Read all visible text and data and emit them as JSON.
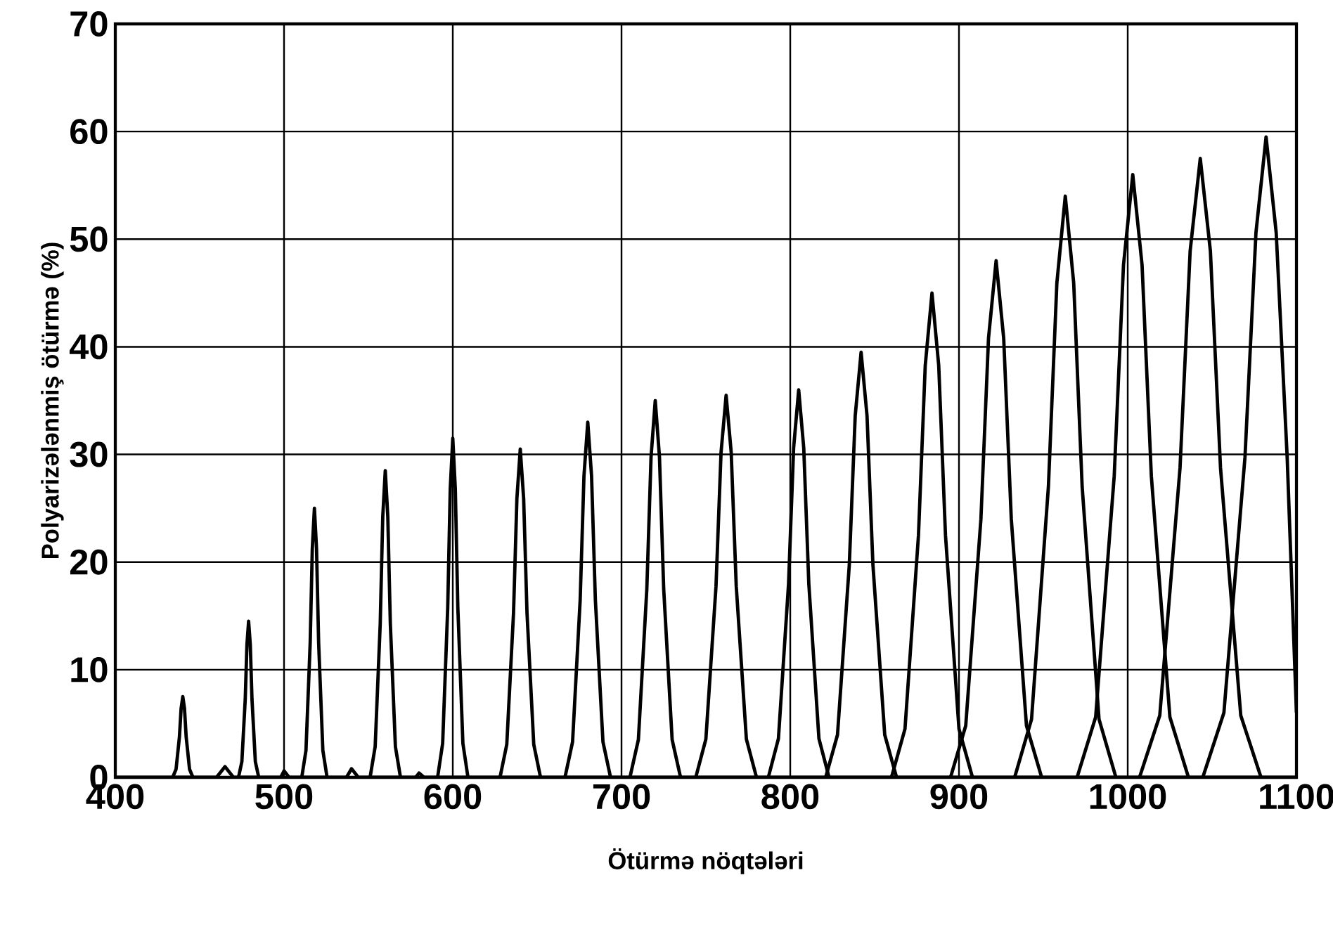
{
  "chart_data": {
    "type": "line",
    "xlabel": "Ötürmə nöqtələri",
    "ylabel": "Polyarizələnmiş ötürmə (%)",
    "xlim": [
      400,
      1100
    ],
    "ylim": [
      0,
      70
    ],
    "xticks": [
      400,
      500,
      600,
      700,
      800,
      900,
      1000,
      1100
    ],
    "yticks": [
      0,
      10,
      20,
      30,
      40,
      50,
      60,
      70
    ],
    "grid": true,
    "line_style": "solid",
    "marker": "none",
    "series": [
      {
        "color": "#000000",
        "x": [
          400,
          460,
          465,
          470,
          498,
          500,
          503,
          537,
          540,
          544,
          578,
          580,
          583,
          1100
        ],
        "values": [
          0,
          0,
          1,
          0,
          0,
          0.6,
          0,
          0,
          0.8,
          0,
          0,
          0.4,
          0,
          0
        ]
      },
      {
        "color": "#000000",
        "x": [
          434,
          436,
          438,
          439,
          440,
          441,
          442,
          444,
          446
        ],
        "values": [
          0,
          0.75,
          3.75,
          6.4,
          7.5,
          6.4,
          3.75,
          0.75,
          0
        ]
      },
      {
        "color": "#000000",
        "x": [
          473,
          475,
          477,
          478,
          479,
          480,
          481,
          483,
          485
        ],
        "values": [
          0,
          1.45,
          7.25,
          12.3,
          14.5,
          12.3,
          7.25,
          1.45,
          0
        ]
      },
      {
        "color": "#000000",
        "x": [
          510.5,
          513,
          515.5,
          516.75,
          518,
          519.25,
          520.5,
          523,
          525.5
        ],
        "values": [
          0,
          2.5,
          12.5,
          21.25,
          25,
          21.25,
          12.5,
          2.5,
          0
        ]
      },
      {
        "color": "#000000",
        "x": [
          551,
          554,
          557,
          558.5,
          560,
          561.5,
          563,
          566,
          569
        ],
        "values": [
          0,
          2.85,
          14.25,
          24.2,
          28.5,
          24.2,
          14.25,
          2.85,
          0
        ]
      },
      {
        "color": "#000000",
        "x": [
          591,
          594,
          597,
          598.5,
          600,
          601.5,
          603,
          606,
          609
        ],
        "values": [
          0,
          3.15,
          15.75,
          26.8,
          31.5,
          26.8,
          15.75,
          3.15,
          0
        ]
      },
      {
        "color": "#000000",
        "x": [
          628,
          632,
          636,
          638,
          640,
          642,
          644,
          648,
          652
        ],
        "values": [
          0,
          3.05,
          15.25,
          25.9,
          30.5,
          25.9,
          15.25,
          3.05,
          0
        ]
      },
      {
        "color": "#000000",
        "x": [
          666.5,
          671,
          675.5,
          677.75,
          680,
          682.25,
          684.5,
          689,
          693.5
        ],
        "values": [
          0,
          3.3,
          16.5,
          28,
          33,
          28,
          16.5,
          3.3,
          0
        ]
      },
      {
        "color": "#000000",
        "x": [
          705,
          710,
          715,
          717.5,
          720,
          722.5,
          725,
          730,
          735
        ],
        "values": [
          0,
          3.5,
          17.5,
          29.75,
          35,
          29.75,
          17.5,
          3.5,
          0
        ]
      },
      {
        "color": "#000000",
        "x": [
          744,
          750,
          756,
          759,
          762,
          765,
          768,
          774,
          780
        ],
        "values": [
          0,
          3.55,
          17.75,
          30.2,
          35.5,
          30.2,
          17.75,
          3.55,
          0
        ]
      },
      {
        "color": "#000000",
        "x": [
          787,
          793,
          799,
          802,
          805,
          808,
          811,
          817,
          823
        ],
        "values": [
          0,
          3.6,
          18,
          30.6,
          36,
          30.6,
          18,
          3.6,
          0
        ]
      },
      {
        "color": "#000000",
        "x": [
          821,
          828,
          835,
          838.5,
          842,
          845.5,
          849,
          856,
          863
        ],
        "values": [
          0,
          3.95,
          19.75,
          33.6,
          39.5,
          33.6,
          19.75,
          3.95,
          0
        ]
      },
      {
        "color": "#000000",
        "x": [
          860,
          868,
          876,
          880,
          884,
          888,
          892,
          900,
          908
        ],
        "values": [
          0,
          4.5,
          22.5,
          38.25,
          45,
          38.25,
          22.5,
          4.5,
          0
        ]
      },
      {
        "color": "#000000",
        "x": [
          895,
          904,
          913,
          917.5,
          922,
          926.5,
          931,
          940,
          949
        ],
        "values": [
          0,
          4.8,
          24,
          40.8,
          48,
          40.8,
          24,
          4.8,
          0
        ]
      },
      {
        "color": "#000000",
        "x": [
          933,
          943,
          953,
          958,
          963,
          968,
          973,
          983,
          993
        ],
        "values": [
          0,
          5.4,
          27,
          45.9,
          54,
          45.9,
          27,
          5.4,
          0
        ]
      },
      {
        "color": "#000000",
        "x": [
          970,
          981,
          992,
          997.5,
          1003,
          1008.5,
          1014,
          1025,
          1036
        ],
        "values": [
          0,
          5.6,
          28,
          47.6,
          56,
          47.6,
          28,
          5.6,
          0
        ]
      },
      {
        "color": "#000000",
        "x": [
          1007,
          1019,
          1031,
          1037,
          1043,
          1049,
          1055,
          1067,
          1079
        ],
        "values": [
          0,
          5.75,
          28.75,
          48.9,
          57.5,
          48.9,
          28.75,
          5.75,
          0
        ]
      },
      {
        "color": "#000000",
        "x": [
          1044.5,
          1057,
          1069.5,
          1076,
          1082,
          1088,
          1094.5,
          1100
        ],
        "values": [
          0,
          6,
          29.75,
          50.6,
          59.5,
          50.6,
          29.75,
          6
        ]
      }
    ]
  }
}
